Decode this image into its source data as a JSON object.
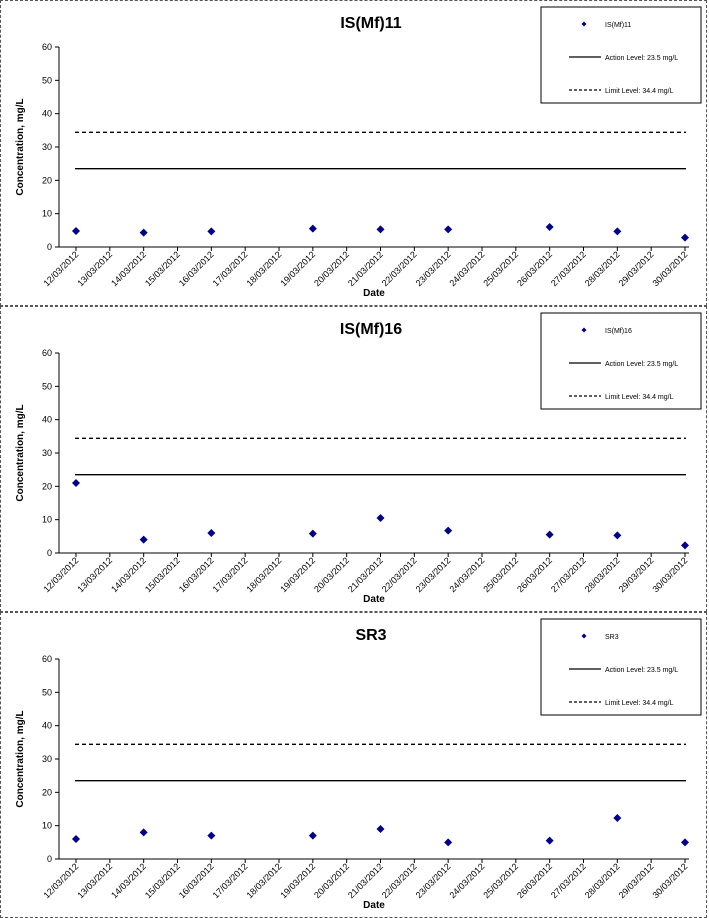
{
  "chart_data": [
    {
      "type": "scatter",
      "title": "IS(Mf)11",
      "xlabel": "Date",
      "ylabel": "Concentration, mg/L",
      "ylim": [
        0,
        60
      ],
      "yticks": [
        0,
        10,
        20,
        30,
        40,
        50,
        60
      ],
      "xticks": [
        "12/03/2012",
        "13/03/2012",
        "14/03/2012",
        "15/03/2012",
        "16/03/2012",
        "17/03/2012",
        "18/03/2012",
        "19/03/2012",
        "20/03/2012",
        "21/03/2012",
        "22/03/2012",
        "23/03/2012",
        "24/03/2012",
        "25/03/2012",
        "26/03/2012",
        "27/03/2012",
        "28/03/2012",
        "29/03/2012",
        "30/03/2012"
      ],
      "grid": false,
      "legend_position": "top-right",
      "series": [
        {
          "name": "IS(Mf)11",
          "marker": "diamond",
          "color": "#00008B",
          "x": [
            "12/03/2012",
            "14/03/2012",
            "16/03/2012",
            "19/03/2012",
            "21/03/2012",
            "23/03/2012",
            "26/03/2012",
            "28/03/2012",
            "30/03/2012"
          ],
          "y": [
            4.8,
            4.3,
            4.7,
            5.5,
            5.3,
            5.3,
            6.0,
            4.7,
            2.8
          ]
        }
      ],
      "reference_lines": [
        {
          "name": "Action Level: 23.5 mg/L",
          "value": 23.5,
          "style": "solid"
        },
        {
          "name": "Limit Level: 34.4 mg/L",
          "value": 34.4,
          "style": "dashed"
        }
      ]
    },
    {
      "type": "scatter",
      "title": "IS(Mf)16",
      "xlabel": "Date",
      "ylabel": "Concentration, mg/L",
      "ylim": [
        0,
        60
      ],
      "yticks": [
        0,
        10,
        20,
        30,
        40,
        50,
        60
      ],
      "xticks": [
        "12/03/2012",
        "13/03/2012",
        "14/03/2012",
        "15/03/2012",
        "16/03/2012",
        "17/03/2012",
        "18/03/2012",
        "19/03/2012",
        "20/03/2012",
        "21/03/2012",
        "22/03/2012",
        "23/03/2012",
        "24/03/2012",
        "25/03/2012",
        "26/03/2012",
        "27/03/2012",
        "28/03/2012",
        "29/03/2012",
        "30/03/2012"
      ],
      "grid": false,
      "legend_position": "top-right",
      "series": [
        {
          "name": "IS(Mf)16",
          "marker": "diamond",
          "color": "#00008B",
          "x": [
            "12/03/2012",
            "14/03/2012",
            "16/03/2012",
            "19/03/2012",
            "21/03/2012",
            "23/03/2012",
            "26/03/2012",
            "28/03/2012",
            "30/03/2012"
          ],
          "y": [
            21.0,
            4.0,
            6.0,
            5.8,
            10.5,
            6.7,
            5.5,
            5.3,
            2.3
          ]
        }
      ],
      "reference_lines": [
        {
          "name": "Action Level: 23.5 mg/L",
          "value": 23.5,
          "style": "solid"
        },
        {
          "name": "Limit Level: 34.4 mg/L",
          "value": 34.4,
          "style": "dashed"
        }
      ]
    },
    {
      "type": "scatter",
      "title": "SR3",
      "xlabel": "Date",
      "ylabel": "Concentration, mg/L",
      "ylim": [
        0,
        60
      ],
      "yticks": [
        0,
        10,
        20,
        30,
        40,
        50,
        60
      ],
      "xticks": [
        "12/03/2012",
        "13/03/2012",
        "14/03/2012",
        "15/03/2012",
        "16/03/2012",
        "17/03/2012",
        "18/03/2012",
        "19/03/2012",
        "20/03/2012",
        "21/03/2012",
        "22/03/2012",
        "23/03/2012",
        "24/03/2012",
        "25/03/2012",
        "26/03/2012",
        "27/03/2012",
        "28/03/2012",
        "29/03/2012",
        "30/03/2012"
      ],
      "grid": false,
      "legend_position": "top-right",
      "series": [
        {
          "name": "SR3",
          "marker": "diamond",
          "color": "#00008B",
          "x": [
            "12/03/2012",
            "14/03/2012",
            "16/03/2012",
            "19/03/2012",
            "21/03/2012",
            "23/03/2012",
            "26/03/2012",
            "28/03/2012",
            "30/03/2012"
          ],
          "y": [
            6.0,
            8.0,
            7.0,
            7.0,
            9.0,
            5.0,
            5.5,
            12.3,
            5.0
          ]
        }
      ],
      "reference_lines": [
        {
          "name": "Action Level: 23.5 mg/L",
          "value": 23.5,
          "style": "solid"
        },
        {
          "name": "Limit Level: 34.4 mg/L",
          "value": 34.4,
          "style": "dashed"
        }
      ]
    }
  ]
}
